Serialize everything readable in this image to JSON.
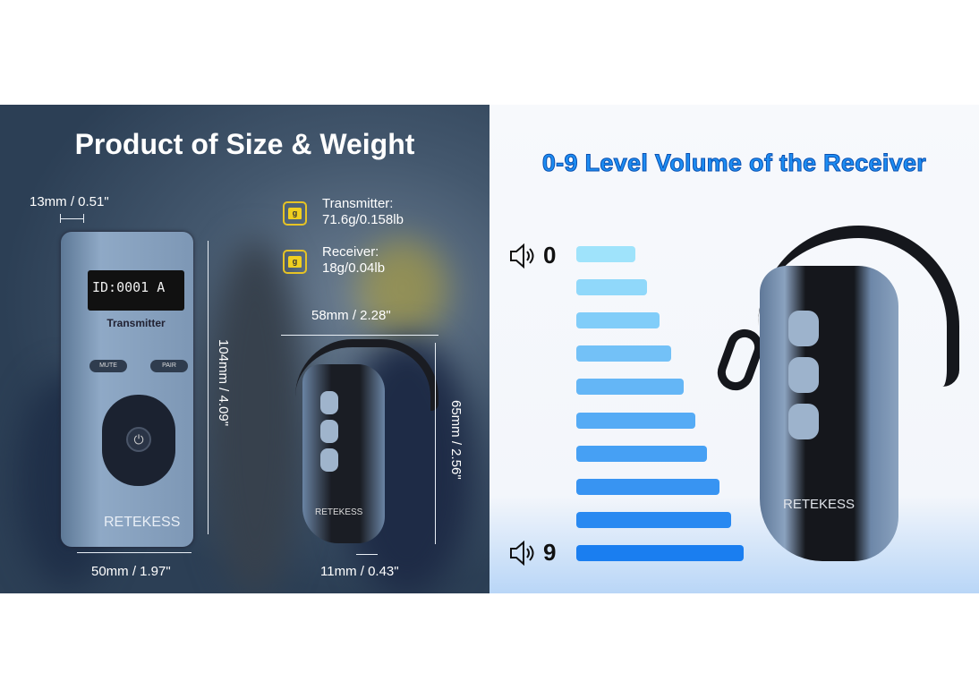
{
  "left_panel": {
    "title": "Product of Size & Weight",
    "thickness": "13mm / 0.51\"",
    "transmitter_height": "104mm / 4.09\"",
    "transmitter_width": "50mm / 1.97\"",
    "receiver_width": "58mm / 2.28\"",
    "receiver_height": "65mm / 2.56\"",
    "receiver_depth": "11mm / 0.43\"",
    "weights": [
      {
        "icon": "weight-icon",
        "icon_text": "g",
        "label": "Transmitter:",
        "value": "71.6g/0.158lb"
      },
      {
        "icon": "weight-icon",
        "icon_text": "g",
        "label": "Receiver:",
        "value": "18g/0.04lb"
      }
    ],
    "transmitter": {
      "screen_id": "ID:0001",
      "screen_channel": "A",
      "name": "Transmitter",
      "mute": "MUTE",
      "pair": "PAIR",
      "brand": "RETEKESS"
    },
    "receiver": {
      "brand": "RETEKESS"
    }
  },
  "right_panel": {
    "title": "0-9 Level Volume of the Receiver",
    "min_label": "0",
    "max_label": "9",
    "volume_levels": [
      0,
      1,
      2,
      3,
      4,
      5,
      6,
      7,
      8,
      9
    ],
    "color_min": "#9fe3fb",
    "color_max": "#1a7ef0",
    "brand": "RETEKESS"
  }
}
